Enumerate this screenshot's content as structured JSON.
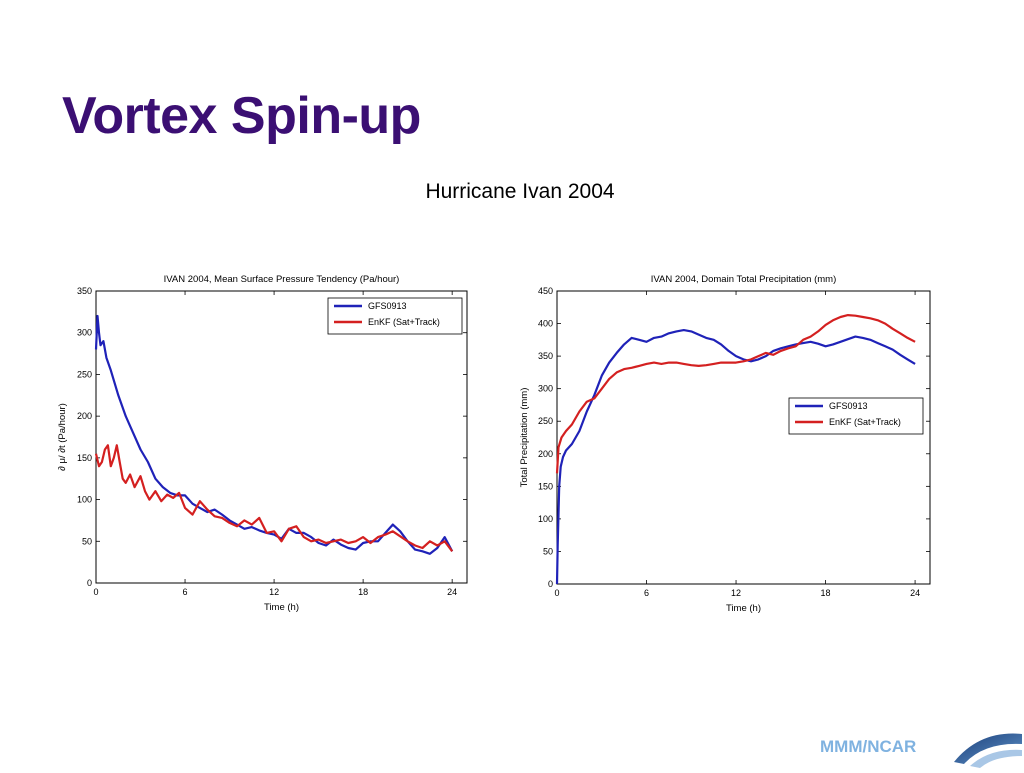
{
  "slide": {
    "title": "Vortex Spin-up",
    "subtitle": "Hurricane Ivan 2004",
    "footer_brand": "MMM/NCAR"
  },
  "colors": {
    "title": "#3b0f73",
    "gfs": "#1f22b8",
    "enkf": "#d42020",
    "footer": "#7fb2e0"
  },
  "chart_data": [
    {
      "type": "line",
      "title": "IVAN 2004, Mean Surface Pressure Tendency (Pa/hour)",
      "xlabel": "Time (h)",
      "ylabel": "∂ μ/ ∂t (Pa/hour)",
      "xlim": [
        0,
        25
      ],
      "ylim": [
        0,
        350
      ],
      "xticks": [
        0,
        6,
        12,
        18,
        24
      ],
      "yticks": [
        0,
        50,
        100,
        150,
        200,
        250,
        300,
        350
      ],
      "legend_position": "top-right",
      "grid": false,
      "series": [
        {
          "name": "GFS0913",
          "color": "#1f22b8",
          "x": [
            0,
            0.1,
            0.2,
            0.3,
            0.5,
            0.7,
            1,
            1.5,
            2,
            2.5,
            3,
            3.5,
            4,
            4.5,
            5,
            5.5,
            6,
            6.5,
            7,
            7.5,
            8,
            8.5,
            9,
            9.5,
            10,
            10.5,
            11,
            11.5,
            12,
            12.5,
            13,
            13.5,
            14,
            14.5,
            15,
            15.5,
            16,
            16.5,
            17,
            17.5,
            18,
            18.5,
            19,
            19.5,
            20,
            20.5,
            21,
            21.5,
            22,
            22.5,
            23,
            23.5,
            24
          ],
          "y": [
            280,
            320,
            300,
            285,
            290,
            270,
            255,
            225,
            200,
            180,
            160,
            145,
            125,
            115,
            108,
            105,
            105,
            95,
            90,
            85,
            88,
            82,
            75,
            70,
            65,
            67,
            63,
            60,
            58,
            53,
            65,
            60,
            60,
            55,
            48,
            45,
            52,
            46,
            42,
            40,
            48,
            50,
            50,
            60,
            70,
            62,
            50,
            40,
            38,
            35,
            42,
            55,
            38
          ]
        },
        {
          "name": "EnKF (Sat+Track)",
          "color": "#d42020",
          "x": [
            0,
            0.2,
            0.4,
            0.6,
            0.8,
            1,
            1.2,
            1.4,
            1.6,
            1.8,
            2,
            2.3,
            2.6,
            3,
            3.3,
            3.6,
            4,
            4.4,
            4.8,
            5.2,
            5.6,
            6,
            6.5,
            7,
            7.5,
            8,
            8.5,
            9,
            9.5,
            10,
            10.5,
            11,
            11.5,
            12,
            12.5,
            13,
            13.5,
            14,
            14.5,
            15,
            15.5,
            16,
            16.5,
            17,
            17.5,
            18,
            18.5,
            19,
            19.5,
            20,
            20.5,
            21,
            21.5,
            22,
            22.5,
            23,
            23.5,
            24
          ],
          "y": [
            155,
            140,
            145,
            160,
            165,
            140,
            150,
            165,
            145,
            125,
            120,
            130,
            115,
            128,
            110,
            100,
            110,
            98,
            106,
            102,
            108,
            90,
            82,
            98,
            88,
            80,
            78,
            72,
            68,
            75,
            70,
            78,
            60,
            62,
            50,
            65,
            68,
            55,
            50,
            52,
            48,
            50,
            52,
            48,
            50,
            55,
            48,
            55,
            58,
            62,
            56,
            50,
            45,
            42,
            50,
            45,
            50,
            38
          ]
        }
      ]
    },
    {
      "type": "line",
      "title": "IVAN 2004, Domain Total Precipitation (mm)",
      "xlabel": "Time (h)",
      "ylabel": "Total Precipitation (mm)",
      "xlim": [
        0,
        25
      ],
      "ylim": [
        0,
        450
      ],
      "xticks": [
        0,
        6,
        12,
        18,
        24
      ],
      "yticks": [
        0,
        50,
        100,
        150,
        200,
        250,
        300,
        350,
        400,
        450
      ],
      "legend_position": "center-right",
      "grid": false,
      "series": [
        {
          "name": "GFS0913",
          "color": "#1f22b8",
          "x": [
            0,
            0.05,
            0.15,
            0.25,
            0.4,
            0.6,
            1,
            1.5,
            2,
            2.5,
            3,
            3.5,
            4,
            4.5,
            5,
            5.5,
            6,
            6.5,
            7,
            7.5,
            8,
            8.5,
            9,
            9.5,
            10,
            10.5,
            11,
            11.5,
            12,
            12.5,
            13,
            13.5,
            14,
            14.5,
            15,
            15.5,
            16,
            16.5,
            17,
            17.5,
            18,
            18.5,
            19,
            19.5,
            20,
            20.5,
            21,
            21.5,
            22,
            22.5,
            23,
            23.5,
            24
          ],
          "y": [
            0,
            60,
            150,
            180,
            195,
            205,
            215,
            235,
            265,
            290,
            320,
            340,
            355,
            368,
            378,
            375,
            372,
            378,
            380,
            385,
            388,
            390,
            388,
            383,
            378,
            375,
            368,
            358,
            350,
            345,
            342,
            345,
            350,
            358,
            362,
            365,
            368,
            370,
            372,
            369,
            365,
            368,
            372,
            376,
            380,
            378,
            375,
            370,
            365,
            360,
            352,
            345,
            338
          ]
        },
        {
          "name": "EnKF (Sat+Track)",
          "color": "#d42020",
          "x": [
            0,
            0.1,
            0.3,
            0.6,
            1,
            1.5,
            2,
            2.5,
            3,
            3.5,
            4,
            4.5,
            5,
            5.5,
            6,
            6.5,
            7,
            7.5,
            8,
            8.5,
            9,
            9.5,
            10,
            10.5,
            11,
            11.5,
            12,
            12.5,
            13,
            13.5,
            14,
            14.5,
            15,
            15.5,
            16,
            16.5,
            17,
            17.5,
            18,
            18.5,
            19,
            19.5,
            20,
            20.5,
            21,
            21.5,
            22,
            22.5,
            23,
            23.5,
            24
          ],
          "y": [
            170,
            210,
            225,
            235,
            245,
            265,
            280,
            285,
            300,
            315,
            325,
            330,
            332,
            335,
            338,
            340,
            338,
            340,
            340,
            338,
            336,
            335,
            336,
            338,
            340,
            340,
            340,
            342,
            345,
            350,
            355,
            352,
            358,
            362,
            365,
            375,
            380,
            388,
            398,
            405,
            410,
            413,
            412,
            410,
            408,
            405,
            400,
            392,
            385,
            378,
            372
          ]
        }
      ]
    }
  ]
}
